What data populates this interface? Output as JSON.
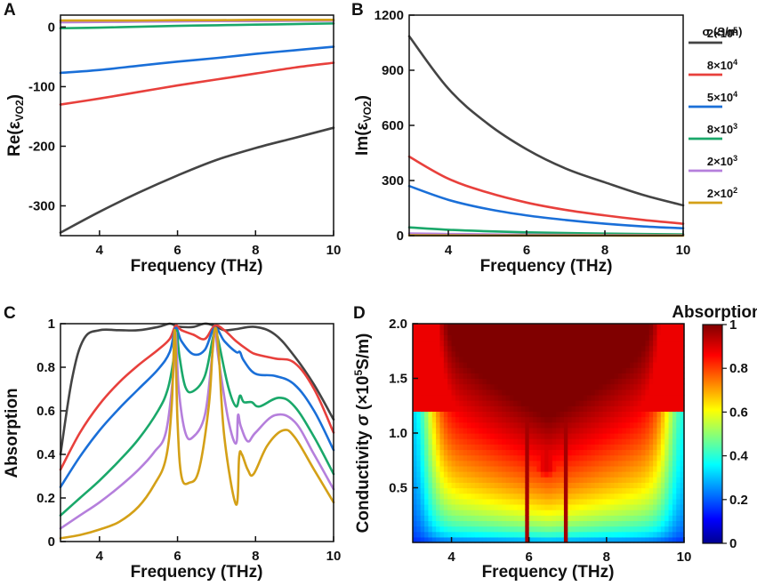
{
  "chart_data": [
    {
      "panel": "A",
      "type": "line",
      "title": "",
      "xlabel": "Frequency (THz)",
      "ylabel": "Re(εVO2)",
      "ylabel_main": "Re(ε",
      "ylabel_sub": "VO2",
      "ylabel_end": ")",
      "xlim": [
        3,
        10
      ],
      "ylim": [
        -350,
        20
      ],
      "xticks": [
        "4",
        "6",
        "8",
        "10"
      ],
      "yticks": [
        "-300",
        "-200",
        "-100",
        "0"
      ],
      "series": [
        {
          "name": "2×10^5",
          "color": "#444444",
          "x": [
            3,
            4,
            5,
            6,
            7,
            8,
            9,
            10
          ],
          "values": [
            -345,
            -310,
            -278,
            -249,
            -223,
            -203,
            -186,
            -169
          ]
        },
        {
          "name": "8×10^4",
          "color": "#e8403c",
          "x": [
            3,
            4,
            5,
            6,
            7,
            8,
            9,
            10
          ],
          "values": [
            -130,
            -120,
            -109,
            -98,
            -88,
            -78,
            -68,
            -60
          ]
        },
        {
          "name": "5×10^4",
          "color": "#1a6fd8",
          "x": [
            3,
            4,
            5,
            6,
            7,
            8,
            9,
            10
          ],
          "values": [
            -77,
            -72,
            -65,
            -58,
            -52,
            -45,
            -39,
            -33
          ]
        },
        {
          "name": "8×10^3",
          "color": "#1aa86a",
          "x": [
            3,
            4,
            5,
            6,
            7,
            8,
            9,
            10
          ],
          "values": [
            -2,
            -1,
            0.5,
            2,
            3,
            4,
            5,
            6
          ]
        },
        {
          "name": "2×10^3",
          "color": "#b57fdc",
          "x": [
            3,
            4,
            5,
            6,
            7,
            8,
            9,
            10
          ],
          "values": [
            8,
            8.5,
            9,
            9.5,
            10,
            10,
            10.5,
            10.5
          ]
        },
        {
          "name": "2×10^2",
          "color": "#d4a017",
          "x": [
            3,
            4,
            5,
            6,
            7,
            8,
            9,
            10
          ],
          "values": [
            11,
            11,
            11,
            11.5,
            11.5,
            12,
            12,
            12
          ]
        }
      ]
    },
    {
      "panel": "B",
      "type": "line",
      "title": "",
      "xlabel": "Frequency (THz)",
      "ylabel": "Im(εVO2)",
      "ylabel_main": "Im(ε",
      "ylabel_sub": "VO2",
      "ylabel_end": ")",
      "xlim": [
        3,
        10
      ],
      "ylim": [
        0,
        1200
      ],
      "xticks": [
        "4",
        "6",
        "8",
        "10"
      ],
      "yticks": [
        "0",
        "300",
        "600",
        "900",
        "1200"
      ],
      "legend_title": "σ (S/m)",
      "legend_position": "right",
      "series": [
        {
          "name": "2×10^5",
          "label_base": "2×10",
          "label_exp": "5",
          "color": "#444444",
          "x": [
            3,
            4,
            5,
            6,
            7,
            8,
            9,
            10
          ],
          "values": [
            1085,
            800,
            610,
            470,
            365,
            290,
            220,
            165
          ]
        },
        {
          "name": "8×10^4",
          "label_base": "8×10",
          "label_exp": "4",
          "color": "#e8403c",
          "x": [
            3,
            4,
            5,
            6,
            7,
            8,
            9,
            10
          ],
          "values": [
            430,
            310,
            235,
            180,
            140,
            110,
            85,
            65
          ]
        },
        {
          "name": "5×10^4",
          "label_base": "5×10",
          "label_exp": "4",
          "color": "#1a6fd8",
          "x": [
            3,
            4,
            5,
            6,
            7,
            8,
            9,
            10
          ],
          "values": [
            270,
            195,
            145,
            110,
            85,
            65,
            50,
            40
          ]
        },
        {
          "name": "8×10^3",
          "label_base": "8×10",
          "label_exp": "3",
          "color": "#1aa86a",
          "x": [
            3,
            4,
            5,
            6,
            7,
            8,
            9,
            10
          ],
          "values": [
            45,
            32,
            24,
            18,
            14,
            11,
            9,
            7
          ]
        },
        {
          "name": "2×10^3",
          "label_base": "2×10",
          "label_exp": "3",
          "color": "#b57fdc",
          "x": [
            3,
            4,
            5,
            6,
            7,
            8,
            9,
            10
          ],
          "values": [
            12,
            9,
            7,
            5,
            4,
            3,
            2.5,
            2
          ]
        },
        {
          "name": "2×10^2",
          "label_base": "2×10",
          "label_exp": "2",
          "color": "#d4a017",
          "x": [
            3,
            4,
            5,
            6,
            7,
            8,
            9,
            10
          ],
          "values": [
            2,
            1.5,
            1,
            1,
            0.8,
            0.6,
            0.5,
            0.4
          ]
        }
      ]
    },
    {
      "panel": "C",
      "type": "line",
      "title": "",
      "xlabel": "Frequency (THz)",
      "ylabel": "Absorption",
      "xlim": [
        3,
        10
      ],
      "ylim": [
        0,
        1
      ],
      "xticks": [
        "4",
        "6",
        "8",
        "10"
      ],
      "yticks": [
        "0",
        "0.2",
        "0.4",
        "0.6",
        "0.8",
        "1"
      ],
      "series": [
        {
          "name": "2×10^5",
          "color": "#444444",
          "x": [
            3,
            3.3,
            3.6,
            4,
            4.5,
            5,
            5.5,
            5.8,
            5.95,
            6.1,
            6.4,
            6.7,
            6.95,
            7.2,
            7.5,
            8,
            8.5,
            9,
            9.5,
            10
          ],
          "values": [
            0.4,
            0.75,
            0.93,
            0.97,
            0.97,
            0.97,
            0.985,
            1.0,
            0.99,
            0.985,
            0.985,
            1.0,
            0.99,
            0.97,
            0.975,
            0.985,
            0.95,
            0.85,
            0.72,
            0.56
          ]
        },
        {
          "name": "8×10^4",
          "color": "#e8403c",
          "x": [
            3,
            3.5,
            4,
            4.5,
            5,
            5.5,
            5.8,
            5.95,
            6.1,
            6.4,
            6.7,
            6.95,
            7.2,
            7.5,
            7.8,
            8,
            8.5,
            9,
            9.5,
            10
          ],
          "values": [
            0.33,
            0.5,
            0.63,
            0.73,
            0.81,
            0.88,
            0.93,
            0.99,
            0.97,
            0.95,
            0.93,
            0.99,
            0.97,
            0.92,
            0.88,
            0.86,
            0.84,
            0.82,
            0.7,
            0.5
          ]
        },
        {
          "name": "5×10^4",
          "color": "#1a6fd8",
          "x": [
            3,
            3.5,
            4,
            4.5,
            5,
            5.5,
            5.8,
            5.95,
            6.1,
            6.4,
            6.7,
            6.95,
            7.2,
            7.5,
            7.6,
            7.7,
            8,
            8.5,
            9,
            9.5,
            10
          ],
          "values": [
            0.25,
            0.39,
            0.51,
            0.61,
            0.7,
            0.79,
            0.87,
            0.98,
            0.92,
            0.86,
            0.88,
            0.98,
            0.92,
            0.87,
            0.87,
            0.83,
            0.77,
            0.76,
            0.72,
            0.6,
            0.42
          ]
        },
        {
          "name": "8×10^3",
          "color": "#1aa86a",
          "x": [
            3,
            3.5,
            4,
            4.5,
            5,
            5.5,
            5.75,
            5.9,
            5.97,
            6.05,
            6.2,
            6.4,
            6.7,
            6.9,
            6.97,
            7.05,
            7.3,
            7.5,
            7.6,
            7.7,
            7.9,
            8.1,
            8.6,
            9,
            9.5,
            10
          ],
          "values": [
            0.12,
            0.2,
            0.28,
            0.37,
            0.47,
            0.6,
            0.7,
            0.84,
            0.97,
            0.85,
            0.71,
            0.69,
            0.76,
            0.93,
            0.97,
            0.92,
            0.71,
            0.62,
            0.67,
            0.64,
            0.64,
            0.62,
            0.66,
            0.62,
            0.48,
            0.31
          ]
        },
        {
          "name": "2×10^3",
          "color": "#b57fdc",
          "x": [
            3,
            3.5,
            4,
            4.5,
            5,
            5.4,
            5.7,
            5.88,
            5.95,
            6.03,
            6.2,
            6.4,
            6.7,
            6.88,
            6.96,
            7.05,
            7.3,
            7.5,
            7.55,
            7.62,
            7.8,
            8,
            8.5,
            9,
            9.5,
            10
          ],
          "values": [
            0.06,
            0.12,
            0.18,
            0.25,
            0.33,
            0.41,
            0.5,
            0.75,
            0.96,
            0.7,
            0.5,
            0.48,
            0.58,
            0.84,
            0.97,
            0.84,
            0.56,
            0.45,
            0.58,
            0.53,
            0.46,
            0.5,
            0.58,
            0.55,
            0.4,
            0.24
          ]
        },
        {
          "name": "2×10^2",
          "color": "#d4a017",
          "x": [
            3,
            3.5,
            4,
            4.5,
            5,
            5.4,
            5.7,
            5.85,
            5.93,
            6.0,
            6.1,
            6.3,
            6.55,
            6.8,
            6.9,
            6.97,
            7.05,
            7.2,
            7.5,
            7.58,
            7.65,
            7.8,
            7.95,
            8.3,
            8.7,
            9,
            9.5,
            10
          ],
          "values": [
            0.015,
            0.03,
            0.055,
            0.09,
            0.16,
            0.26,
            0.38,
            0.62,
            0.97,
            0.55,
            0.3,
            0.27,
            0.33,
            0.62,
            0.88,
            0.98,
            0.88,
            0.48,
            0.17,
            0.39,
            0.4,
            0.33,
            0.31,
            0.44,
            0.51,
            0.48,
            0.33,
            0.18
          ]
        }
      ]
    },
    {
      "panel": "D",
      "type": "heatmap",
      "title": "",
      "xlabel": "Frequency (THz)",
      "ylabel": "Conductivity σ (×10^5 S/m)",
      "ylabel_a": "Conductivity ",
      "ylabel_sigma": "σ",
      "ylabel_b": " (×10",
      "ylabel_exp": "5",
      "ylabel_c": "S/m)",
      "xlim": [
        3,
        10
      ],
      "ylim": [
        0,
        2
      ],
      "xticks": [
        "4",
        "6",
        "8",
        "10"
      ],
      "yticks": [
        "0.5",
        "1.0",
        "1.5",
        "2.0"
      ],
      "colorbar_title": "Absorption",
      "colorbar_ticks": [
        "0",
        "0.2",
        "0.4",
        "0.6",
        "0.8",
        "1"
      ],
      "colorbar_range": [
        0,
        1
      ],
      "resonances_THz": [
        5.95,
        6.95
      ]
    }
  ]
}
